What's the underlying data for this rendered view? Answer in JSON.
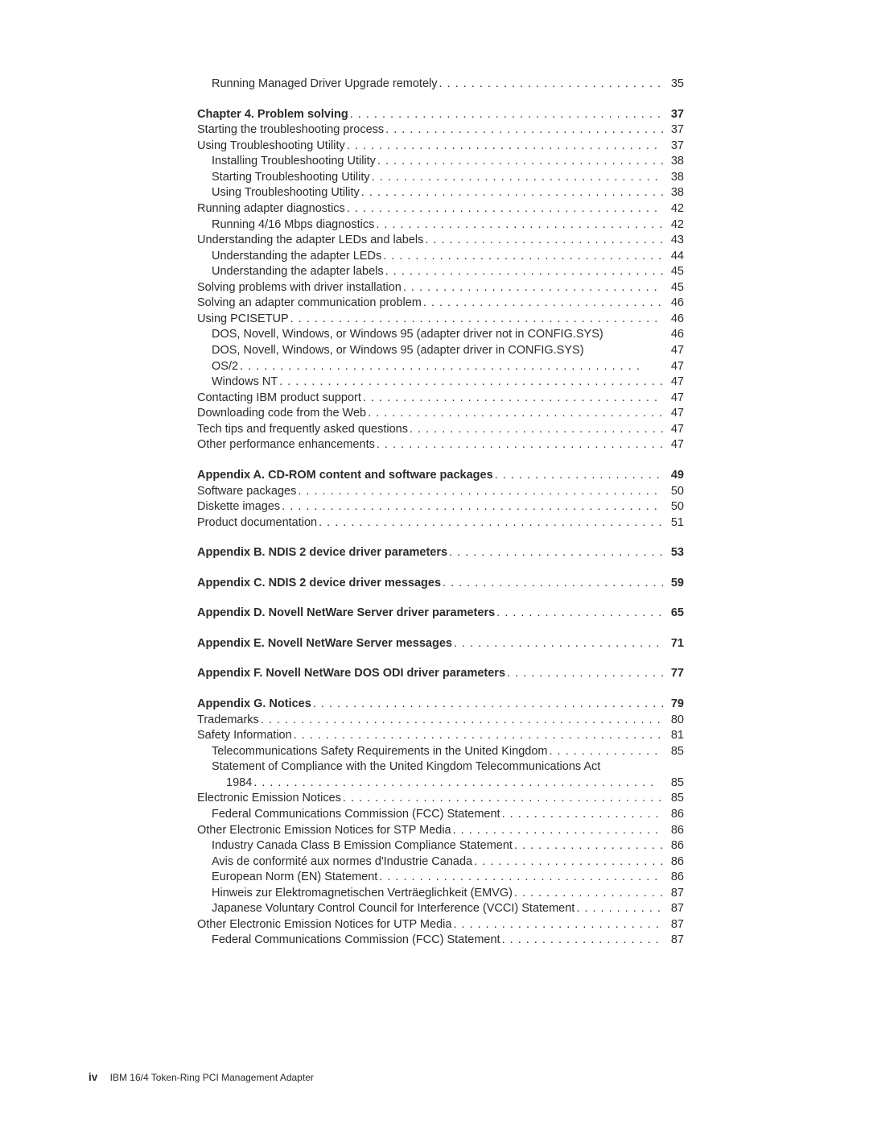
{
  "text_color": "#2b2b2b",
  "background_color": "#ffffff",
  "body_fontsize": 14.5,
  "footer_fontsize": 12,
  "sections": [
    {
      "items": [
        {
          "label": "Running Managed Driver Upgrade remotely",
          "page": "35",
          "indent": 1,
          "bold": false
        }
      ]
    },
    {
      "items": [
        {
          "label": "Chapter 4. Problem solving",
          "page": "37",
          "indent": 0,
          "bold": true
        },
        {
          "label": "Starting the troubleshooting process",
          "page": "37",
          "indent": 0,
          "bold": false
        },
        {
          "label": "Using Troubleshooting Utility",
          "page": "37",
          "indent": 0,
          "bold": false
        },
        {
          "label": "Installing Troubleshooting Utility",
          "page": "38",
          "indent": 1,
          "bold": false
        },
        {
          "label": "Starting Troubleshooting Utility",
          "page": "38",
          "indent": 1,
          "bold": false
        },
        {
          "label": "Using Troubleshooting Utility",
          "page": "38",
          "indent": 1,
          "bold": false
        },
        {
          "label": "Running adapter diagnostics",
          "page": "42",
          "indent": 0,
          "bold": false
        },
        {
          "label": "Running 4/16 Mbps diagnostics",
          "page": "42",
          "indent": 1,
          "bold": false
        },
        {
          "label": "Understanding the adapter LEDs and labels",
          "page": "43",
          "indent": 0,
          "bold": false
        },
        {
          "label": "Understanding the adapter LEDs",
          "page": "44",
          "indent": 1,
          "bold": false
        },
        {
          "label": "Understanding the adapter labels",
          "page": "45",
          "indent": 1,
          "bold": false
        },
        {
          "label": "Solving problems with driver installation",
          "page": "45",
          "indent": 0,
          "bold": false
        },
        {
          "label": "Solving an adapter communication problem",
          "page": "46",
          "indent": 0,
          "bold": false
        },
        {
          "label": "Using PCISETUP",
          "page": "46",
          "indent": 0,
          "bold": false
        },
        {
          "label": "DOS, Novell, Windows, or Windows 95 (adapter driver not in CONFIG.SYS)",
          "page": "46",
          "indent": 1,
          "bold": false,
          "noleader": true
        },
        {
          "label": "DOS, Novell, Windows, or Windows 95 (adapter driver in CONFIG.SYS)",
          "page": "47",
          "indent": 1,
          "bold": false,
          "noleader": true
        },
        {
          "label": "OS/2",
          "page": "47",
          "indent": 1,
          "bold": false
        },
        {
          "label": "Windows NT",
          "page": "47",
          "indent": 1,
          "bold": false
        },
        {
          "label": "Contacting IBM product support",
          "page": "47",
          "indent": 0,
          "bold": false
        },
        {
          "label": "Downloading code from the Web",
          "page": "47",
          "indent": 0,
          "bold": false
        },
        {
          "label": "Tech tips and frequently asked questions",
          "page": "47",
          "indent": 0,
          "bold": false
        },
        {
          "label": "Other performance enhancements",
          "page": "47",
          "indent": 0,
          "bold": false
        }
      ]
    },
    {
      "items": [
        {
          "label": "Appendix A. CD-ROM content and software packages",
          "page": "49",
          "indent": 0,
          "bold": true
        },
        {
          "label": "Software packages",
          "page": "50",
          "indent": 0,
          "bold": false
        },
        {
          "label": "Diskette images",
          "page": "50",
          "indent": 0,
          "bold": false
        },
        {
          "label": "Product documentation",
          "page": "51",
          "indent": 0,
          "bold": false
        }
      ]
    },
    {
      "items": [
        {
          "label": "Appendix B. NDIS 2 device driver parameters",
          "page": "53",
          "indent": 0,
          "bold": true
        }
      ]
    },
    {
      "items": [
        {
          "label": "Appendix C. NDIS 2 device driver messages",
          "page": "59",
          "indent": 0,
          "bold": true
        }
      ]
    },
    {
      "items": [
        {
          "label": "Appendix D. Novell NetWare Server driver parameters",
          "page": "65",
          "indent": 0,
          "bold": true
        }
      ]
    },
    {
      "items": [
        {
          "label": "Appendix E. Novell NetWare Server messages",
          "page": "71",
          "indent": 0,
          "bold": true
        }
      ]
    },
    {
      "items": [
        {
          "label": "Appendix F. Novell NetWare DOS ODI driver parameters",
          "page": "77",
          "indent": 0,
          "bold": true
        }
      ]
    },
    {
      "items": [
        {
          "label": "Appendix G. Notices",
          "page": "79",
          "indent": 0,
          "bold": true
        },
        {
          "label": "Trademarks",
          "page": "80",
          "indent": 0,
          "bold": false
        },
        {
          "label": "Safety Information",
          "page": "81",
          "indent": 0,
          "bold": false
        },
        {
          "label": "Telecommunications Safety Requirements in the United Kingdom",
          "page": "85",
          "indent": 1,
          "bold": false
        },
        {
          "label": "Statement of Compliance with the United Kingdom Telecommunications Act",
          "page": "",
          "indent": 1,
          "bold": false,
          "noleader": true,
          "nopage": true
        },
        {
          "label": "1984",
          "page": "85",
          "indent": 2,
          "bold": false
        },
        {
          "label": "Electronic Emission Notices",
          "page": "85",
          "indent": 0,
          "bold": false
        },
        {
          "label": "Federal Communications Commission (FCC) Statement",
          "page": "86",
          "indent": 1,
          "bold": false
        },
        {
          "label": "Other Electronic Emission Notices for STP Media",
          "page": "86",
          "indent": 0,
          "bold": false
        },
        {
          "label": "Industry Canada Class B Emission Compliance Statement",
          "page": "86",
          "indent": 1,
          "bold": false
        },
        {
          "label": "Avis de conformité aux normes d'Industrie Canada",
          "page": "86",
          "indent": 1,
          "bold": false
        },
        {
          "label": "European Norm (EN) Statement",
          "page": "86",
          "indent": 1,
          "bold": false
        },
        {
          "label": "Hinweis zur Elektromagnetischen Verträeglichkeit (EMVG)",
          "page": "87",
          "indent": 1,
          "bold": false
        },
        {
          "label": "Japanese Voluntary Control Council for Interference (VCCI) Statement",
          "page": "87",
          "indent": 1,
          "bold": false
        },
        {
          "label": "Other Electronic Emission Notices for UTP Media",
          "page": "87",
          "indent": 0,
          "bold": false
        },
        {
          "label": "Federal Communications Commission (FCC) Statement",
          "page": "87",
          "indent": 1,
          "bold": false
        }
      ]
    }
  ],
  "footer": {
    "page_roman": "iv",
    "doc_title": "IBM 16/4 Token-Ring PCI Management Adapter"
  }
}
